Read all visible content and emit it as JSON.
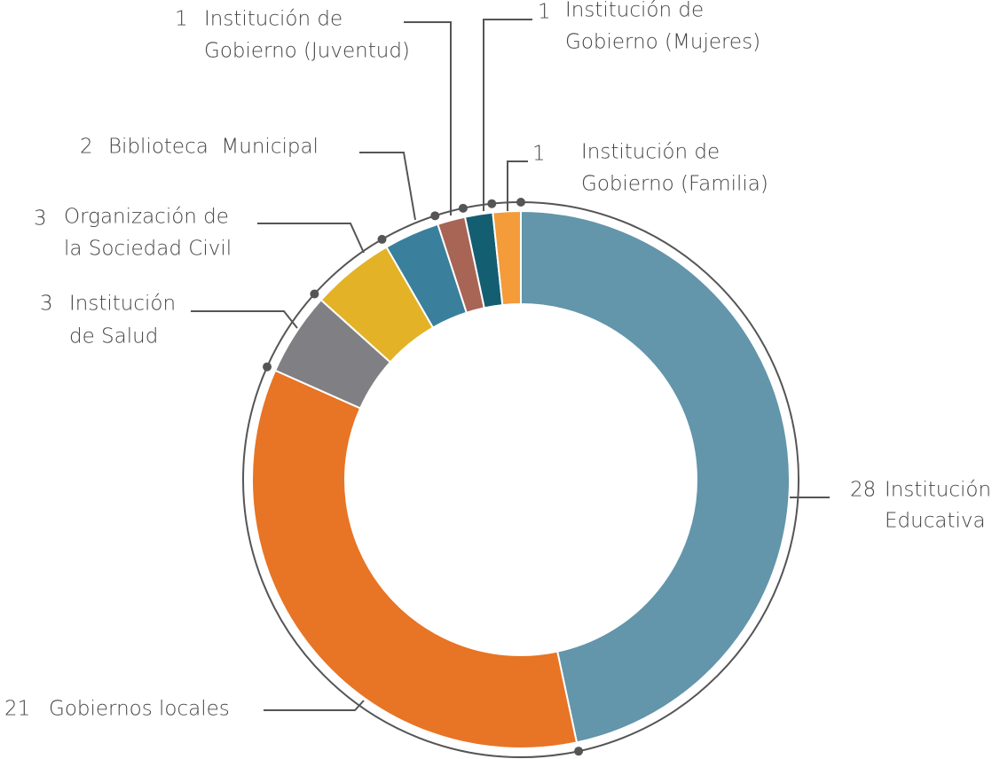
{
  "chart_data": {
    "type": "donut",
    "categories": [
      [
        "Institución",
        "Educativa"
      ],
      [
        "Gobiernos locales"
      ],
      [
        "Institución",
        "de Salud"
      ],
      [
        "Organización de",
        "la Sociedad Civil"
      ],
      [
        "Biblioteca  Municipal"
      ],
      [
        "Institución de",
        "Gobierno (Juventud)"
      ],
      [
        "Institución de",
        "Gobierno (Mujeres)"
      ],
      [
        "Institución de",
        "Gobierno (Familia)"
      ]
    ],
    "values": [
      28,
      21,
      3,
      3,
      2,
      1,
      1,
      1
    ],
    "colors": [
      "#6395ab",
      "#e87425",
      "#808084",
      "#e3b226",
      "#3a7f9c",
      "#a86455",
      "#145e72",
      "#f49b3a"
    ]
  }
}
